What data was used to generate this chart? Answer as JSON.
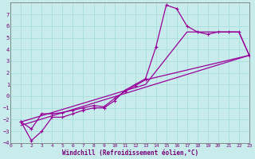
{
  "xlabel": "Windchill (Refroidissement éolien,°C)",
  "bg_color": "#c8ecec",
  "grid_color": "#aadddd",
  "line_color": "#990099",
  "xlim": [
    0,
    23
  ],
  "ylim": [
    -4,
    8
  ],
  "xticks": [
    0,
    1,
    2,
    3,
    4,
    5,
    6,
    7,
    8,
    9,
    10,
    11,
    12,
    13,
    14,
    15,
    16,
    17,
    18,
    19,
    20,
    21,
    22,
    23
  ],
  "yticks": [
    -4,
    -3,
    -2,
    -1,
    0,
    1,
    2,
    3,
    4,
    5,
    6,
    7
  ],
  "curve_main": [
    [
      1,
      -2.2
    ],
    [
      2,
      -3.8
    ],
    [
      3,
      -3.0
    ],
    [
      4,
      -1.8
    ],
    [
      5,
      -1.8
    ],
    [
      6,
      -1.5
    ],
    [
      7,
      -1.2
    ],
    [
      8,
      -1.0
    ],
    [
      9,
      -1.0
    ],
    [
      10,
      -0.4
    ],
    [
      11,
      0.5
    ],
    [
      12,
      1.0
    ],
    [
      13,
      1.5
    ],
    [
      14,
      4.2
    ],
    [
      15,
      7.8
    ],
    [
      16,
      7.5
    ],
    [
      17,
      6.0
    ],
    [
      18,
      5.5
    ],
    [
      19,
      5.3
    ],
    [
      20,
      5.5
    ],
    [
      21,
      5.5
    ],
    [
      22,
      5.5
    ],
    [
      23,
      3.5
    ]
  ],
  "curve2": [
    [
      1,
      -2.2
    ],
    [
      2,
      -2.8
    ],
    [
      3,
      -1.5
    ],
    [
      4,
      -1.5
    ],
    [
      5,
      -1.4
    ],
    [
      6,
      -1.2
    ],
    [
      7,
      -1.0
    ],
    [
      8,
      -0.8
    ],
    [
      9,
      -0.9
    ],
    [
      10,
      -0.2
    ],
    [
      11,
      0.4
    ],
    [
      12,
      0.9
    ],
    [
      13,
      1.4
    ],
    [
      23,
      3.5
    ]
  ],
  "curve3": [
    [
      1,
      -2.5
    ],
    [
      23,
      3.5
    ]
  ],
  "curve4": [
    [
      1,
      -2.2
    ],
    [
      13,
      1.0
    ],
    [
      17,
      5.5
    ],
    [
      20,
      5.5
    ],
    [
      22,
      5.5
    ],
    [
      23,
      3.5
    ]
  ]
}
